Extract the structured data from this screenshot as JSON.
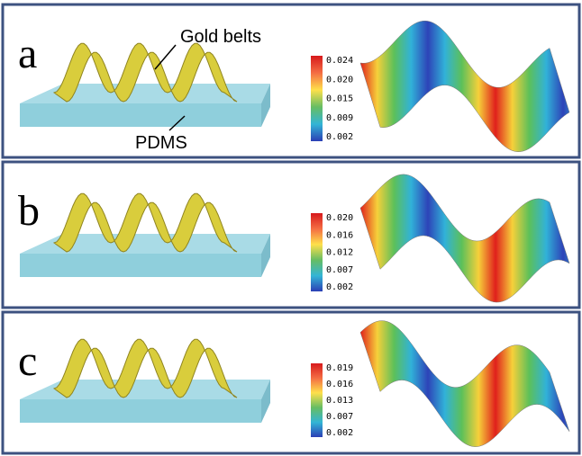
{
  "panels": [
    {
      "label": "a",
      "colorbar_ticks": [
        "0.024",
        "0.020",
        "0.015",
        "0.009",
        "0.002"
      ],
      "annotations": [
        "Gold belts",
        "PDMS"
      ]
    },
    {
      "label": "b",
      "colorbar_ticks": [
        "0.020",
        "0.016",
        "0.012",
        "0.007",
        "0.002"
      ]
    },
    {
      "label": "c",
      "colorbar_ticks": [
        "0.019",
        "0.016",
        "0.013",
        "0.007",
        "0.002"
      ]
    }
  ]
}
